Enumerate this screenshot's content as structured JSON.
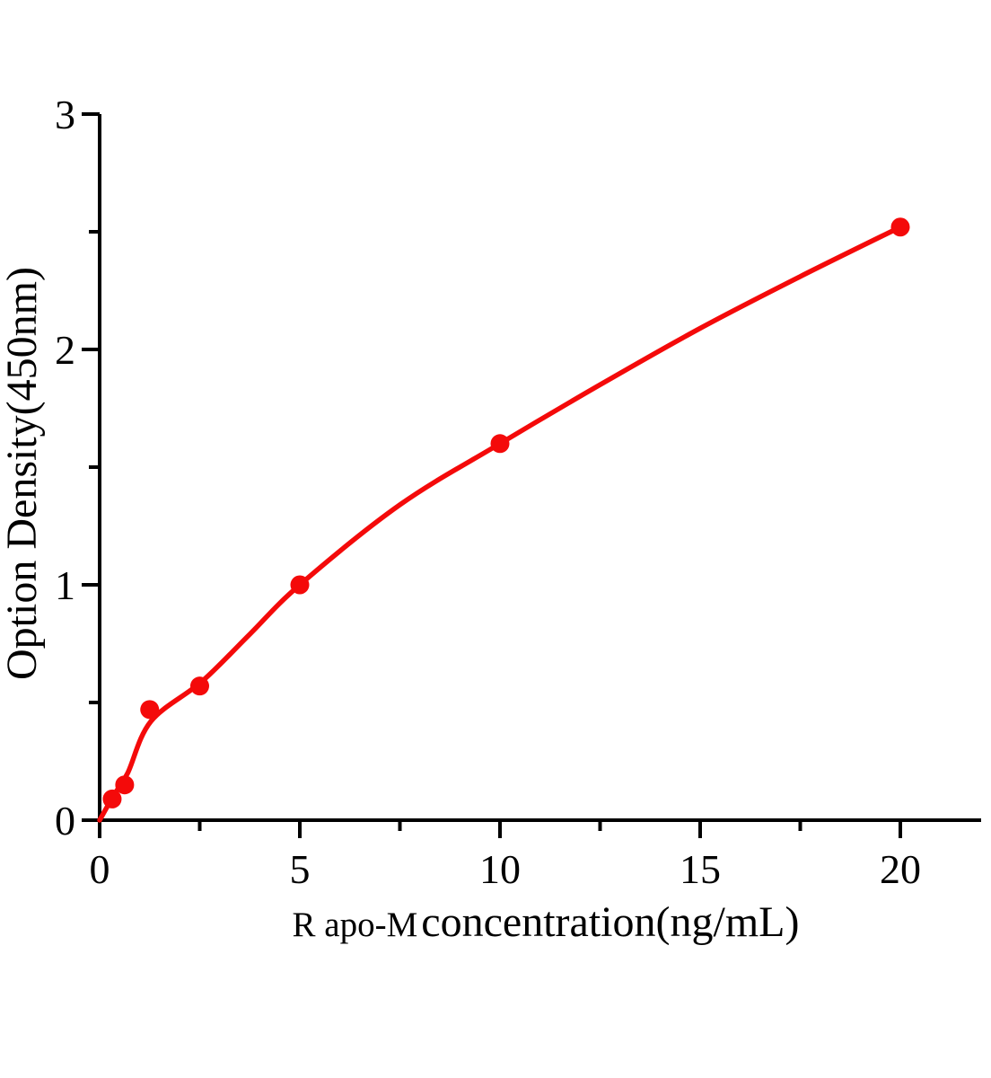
{
  "chart_data": {
    "type": "scatter",
    "title": "",
    "xlabel_prefix": "R apo-M",
    "xlabel_main": " concentration(ng/mL)",
    "ylabel": "Option Density(450nm)",
    "x_ticks": [
      0,
      5,
      10,
      15,
      20
    ],
    "x_minor_ticks": [
      2.5,
      7.5,
      12.5,
      17.5
    ],
    "y_ticks": [
      0,
      1,
      2,
      3
    ],
    "y_minor_ticks": [
      0.5,
      1.5,
      2.5
    ],
    "xlim": [
      0,
      22
    ],
    "ylim": [
      0,
      3
    ],
    "grid": false,
    "legend_position": "none",
    "colors": {
      "series": "#f40a0a",
      "axis": "#000000",
      "background": "#ffffff"
    },
    "points": [
      {
        "x": 0.313,
        "y": 0.09
      },
      {
        "x": 0.625,
        "y": 0.15
      },
      {
        "x": 1.25,
        "y": 0.47
      },
      {
        "x": 2.5,
        "y": 0.57
      },
      {
        "x": 5,
        "y": 1.0
      },
      {
        "x": 10,
        "y": 1.6
      },
      {
        "x": 20,
        "y": 2.52
      }
    ],
    "fit_curve": [
      {
        "x": 0,
        "y": 0
      },
      {
        "x": 0.35,
        "y": 0.105
      },
      {
        "x": 0.7,
        "y": 0.2
      },
      {
        "x": 1.28,
        "y": 0.42
      },
      {
        "x": 2.56,
        "y": 0.59
      },
      {
        "x": 3.75,
        "y": 0.79
      },
      {
        "x": 5,
        "y": 1.0
      },
      {
        "x": 7.5,
        "y": 1.34
      },
      {
        "x": 10,
        "y": 1.6
      },
      {
        "x": 12.5,
        "y": 1.85
      },
      {
        "x": 15,
        "y": 2.09
      },
      {
        "x": 17.5,
        "y": 2.31
      },
      {
        "x": 20,
        "y": 2.52
      }
    ]
  }
}
